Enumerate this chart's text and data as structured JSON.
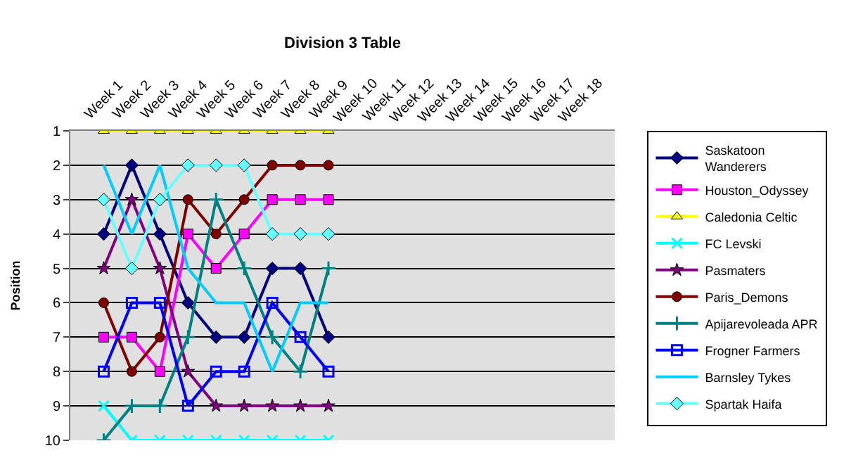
{
  "chart_data": {
    "type": "line",
    "title": "Division 3 Table",
    "ylabel": "Position",
    "categories": [
      "Week 1",
      "Week 2",
      "Week 3",
      "Week 4",
      "Week 5",
      "Week 6",
      "Week 7",
      "Week 8",
      "Week 9",
      "Week 10",
      "Week 11",
      "Week 12",
      "Week 13",
      "Week 14",
      "Week 15",
      "Week 16",
      "Week 17",
      "Week 18"
    ],
    "series": [
      {
        "name": "Saskatoon Wanderers",
        "color": "#000080",
        "marker": "diamond",
        "values": [
          4,
          2,
          4,
          6,
          7,
          7,
          5,
          5,
          7,
          null,
          null,
          null,
          null,
          null,
          null,
          null,
          null,
          null
        ]
      },
      {
        "name": "Houston_Odyssey",
        "color": "#ff00ff",
        "marker": "square",
        "values": [
          7,
          7,
          8,
          4,
          5,
          4,
          3,
          3,
          3,
          null,
          null,
          null,
          null,
          null,
          null,
          null,
          null,
          null
        ]
      },
      {
        "name": "Caledonia Celtic",
        "color": "#ffff00",
        "marker": "triangle",
        "values": [
          1,
          1,
          1,
          1,
          1,
          1,
          1,
          1,
          1,
          null,
          null,
          null,
          null,
          null,
          null,
          null,
          null,
          null
        ]
      },
      {
        "name": "FC Levski",
        "color": "#00ffff",
        "marker": "x",
        "values": [
          9,
          10,
          10,
          10,
          10,
          10,
          10,
          10,
          10,
          null,
          null,
          null,
          null,
          null,
          null,
          null,
          null,
          null
        ]
      },
      {
        "name": "Pasmaters",
        "color": "#800080",
        "marker": "star",
        "values": [
          5,
          3,
          5,
          8,
          9,
          9,
          9,
          9,
          9,
          null,
          null,
          null,
          null,
          null,
          null,
          null,
          null,
          null
        ]
      },
      {
        "name": "Paris_Demons",
        "color": "#800000",
        "marker": "circle",
        "values": [
          6,
          8,
          7,
          3,
          4,
          3,
          2,
          2,
          2,
          null,
          null,
          null,
          null,
          null,
          null,
          null,
          null,
          null
        ]
      },
      {
        "name": "Apijarevoleada APR",
        "color": "#008080",
        "marker": "cross",
        "values": [
          10,
          9,
          9,
          7,
          3,
          5,
          7,
          8,
          5,
          null,
          null,
          null,
          null,
          null,
          null,
          null,
          null,
          null
        ]
      },
      {
        "name": "Frogner Farmers",
        "color": "#0000ff",
        "marker": "square-open",
        "values": [
          8,
          6,
          6,
          9,
          8,
          8,
          6,
          7,
          8,
          null,
          null,
          null,
          null,
          null,
          null,
          null,
          null,
          null
        ]
      },
      {
        "name": "Barnsley Tykes",
        "color": "#00ccff",
        "marker": "none",
        "values": [
          2,
          4,
          2,
          5,
          6,
          6,
          8,
          6,
          6,
          null,
          null,
          null,
          null,
          null,
          null,
          null,
          null,
          null
        ]
      },
      {
        "name": "Spartak Haifa",
        "color": "#66ffff",
        "marker": "diamond",
        "values": [
          3,
          5,
          3,
          2,
          2,
          2,
          4,
          4,
          4,
          null,
          null,
          null,
          null,
          null,
          null,
          null,
          null,
          null
        ]
      }
    ],
    "ylim": [
      10,
      1
    ],
    "yticks": [
      1,
      2,
      3,
      4,
      5,
      6,
      7,
      8,
      9,
      10
    ],
    "grid": "y",
    "legend": "right"
  }
}
